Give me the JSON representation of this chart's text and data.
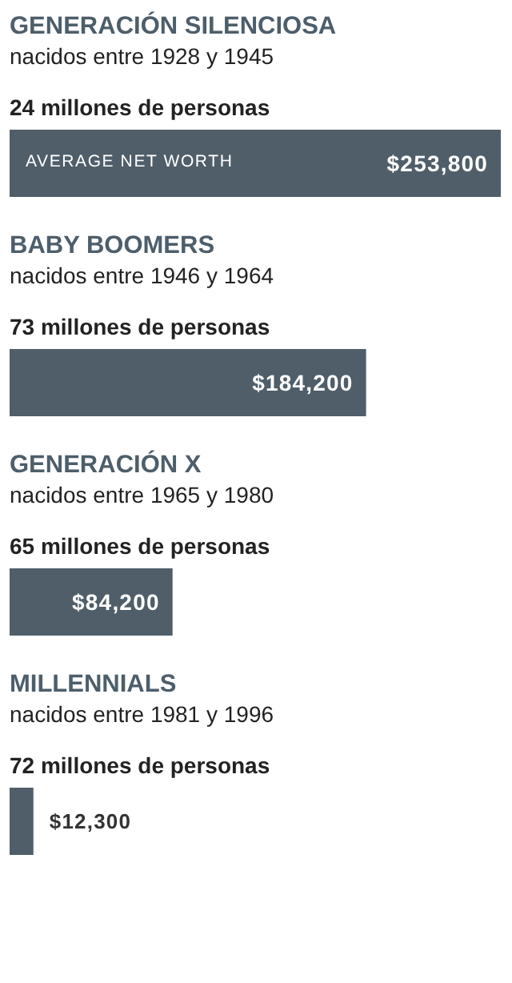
{
  "chart_data": {
    "type": "bar",
    "orientation": "horizontal",
    "categories": [
      "GENERACIÓN SILENCIOSA",
      "BABY BOOMERS",
      "GENERACIÓN X",
      "MILLENNIALS"
    ],
    "values": [
      253800,
      184200,
      84200,
      12300
    ],
    "value_labels": [
      "$253,800",
      "$184,200",
      "$84,200",
      "$12,300"
    ],
    "color": "#4f5e69",
    "annotations": [
      "nacidos entre 1928 y 1945",
      "24 millones de personas",
      "AVERAGE NET WORTH",
      "nacidos entre 1946 y 1964",
      "73 millones de personas",
      "nacidos entre 1965 y 1980",
      "65 millones de personas",
      "nacidos entre 1981 y 1996",
      "72 millones de personas"
    ]
  }
}
